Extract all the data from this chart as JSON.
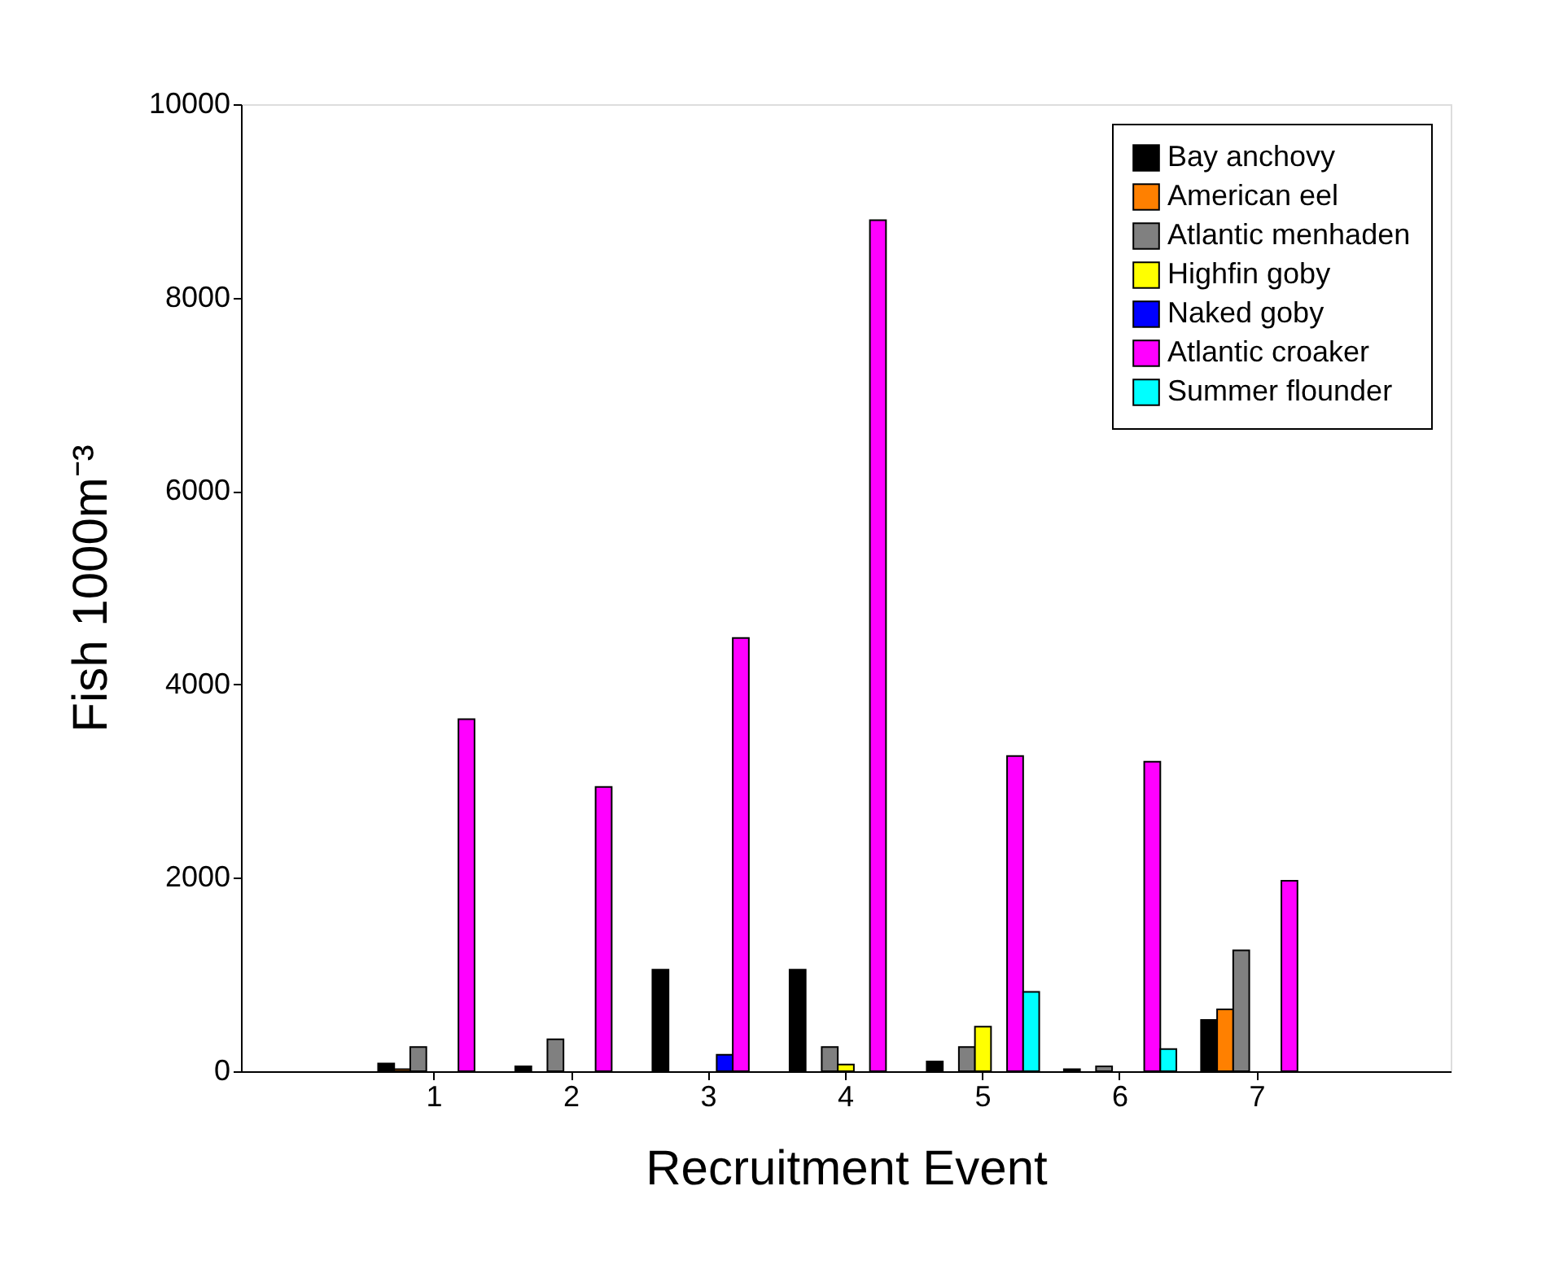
{
  "chart_data": {
    "type": "bar",
    "xlabel": "Recruitment Event",
    "ylabel": "Fish 1000m⁻³",
    "categories": [
      "1",
      "2",
      "3",
      "4",
      "5",
      "6",
      "7"
    ],
    "series": [
      {
        "name": "Bay anchovy",
        "color": "#000000",
        "values": [
          80,
          50,
          1050,
          1050,
          100,
          20,
          530
        ]
      },
      {
        "name": "American eel",
        "color": "#ff8000",
        "values": [
          20,
          null,
          null,
          null,
          null,
          null,
          640
        ]
      },
      {
        "name": "Atlantic menhaden",
        "color": "#808080",
        "values": [
          250,
          330,
          null,
          250,
          250,
          50,
          1250
        ]
      },
      {
        "name": "Highfin goby",
        "color": "#ffff00",
        "values": [
          null,
          null,
          null,
          70,
          460,
          null,
          null
        ]
      },
      {
        "name": "Naked goby",
        "color": "#0000ff",
        "values": [
          null,
          null,
          170,
          null,
          null,
          null,
          null
        ]
      },
      {
        "name": "Atlantic croaker",
        "color": "#ff00ff",
        "values": [
          3640,
          2940,
          4480,
          8800,
          3260,
          3200,
          1970
        ]
      },
      {
        "name": "Summer flounder",
        "color": "#00ffff",
        "values": [
          null,
          null,
          null,
          null,
          820,
          230,
          null
        ]
      }
    ],
    "ylim": [
      0,
      10000
    ],
    "yticks": [
      0,
      2000,
      4000,
      6000,
      8000,
      10000
    ],
    "grid": false,
    "legend": "top right"
  }
}
